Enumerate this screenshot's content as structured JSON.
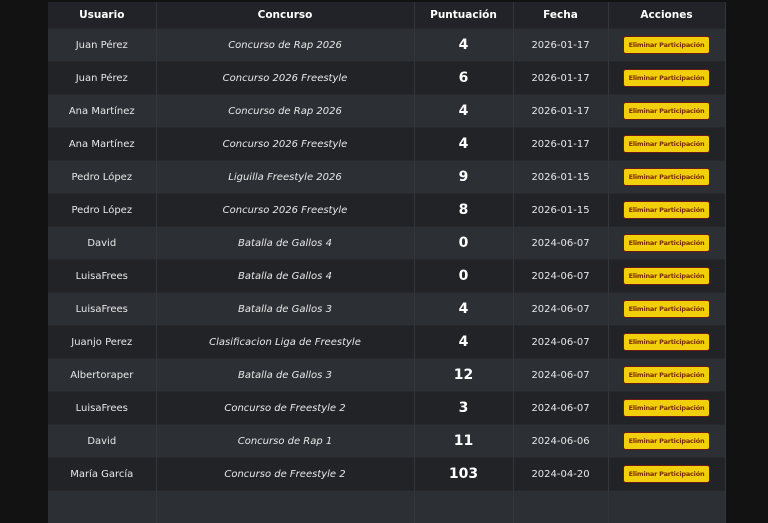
{
  "headers": {
    "user": "Usuario",
    "contest": "Concurso",
    "score": "Puntuación",
    "date": "Fecha",
    "actions": "Acciones"
  },
  "action_label": "Eliminar Participación",
  "rows": [
    {
      "user": "Juan Pérez",
      "contest": "Concurso de Rap 2026",
      "score": "4",
      "date": "2026-01-17"
    },
    {
      "user": "Juan Pérez",
      "contest": "Concurso 2026 Freestyle",
      "score": "6",
      "date": "2026-01-17"
    },
    {
      "user": "Ana Martínez",
      "contest": "Concurso de Rap 2026",
      "score": "4",
      "date": "2026-01-17"
    },
    {
      "user": "Ana Martínez",
      "contest": "Concurso 2026 Freestyle",
      "score": "4",
      "date": "2026-01-17"
    },
    {
      "user": "Pedro López",
      "contest": "Liguilla Freestyle 2026",
      "score": "9",
      "date": "2026-01-15"
    },
    {
      "user": "Pedro López",
      "contest": "Concurso 2026 Freestyle",
      "score": "8",
      "date": "2026-01-15"
    },
    {
      "user": "David",
      "contest": "Batalla de Gallos 4",
      "score": "0",
      "date": "2024-06-07"
    },
    {
      "user": "LuisaFrees",
      "contest": "Batalla de Gallos 4",
      "score": "0",
      "date": "2024-06-07"
    },
    {
      "user": "LuisaFrees",
      "contest": "Batalla de Gallos 3",
      "score": "4",
      "date": "2024-06-07"
    },
    {
      "user": "Juanjo Perez",
      "contest": "Clasificacion Liga de Freestyle",
      "score": "4",
      "date": "2024-06-07"
    },
    {
      "user": "Albertoraper",
      "contest": "Batalla de Gallos 3",
      "score": "12",
      "date": "2024-06-07"
    },
    {
      "user": "LuisaFrees",
      "contest": "Concurso de Freestyle 2",
      "score": "3",
      "date": "2024-06-07"
    },
    {
      "user": "David",
      "contest": "Concurso de Rap 1",
      "score": "11",
      "date": "2024-06-06"
    },
    {
      "user": "María García",
      "contest": "Concurso de Freestyle 2",
      "score": "103",
      "date": "2024-04-20"
    }
  ]
}
